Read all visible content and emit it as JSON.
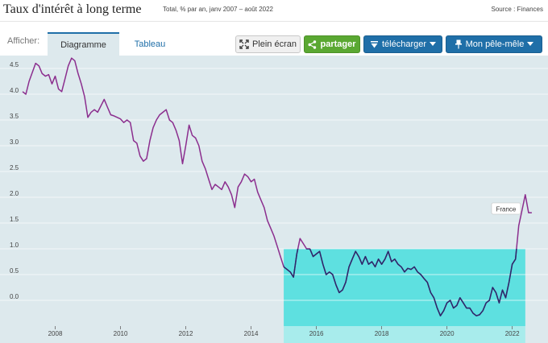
{
  "header": {
    "title": "Taux d'intérêt à long terme",
    "subtitle": "Total, % par an, janv 2007 – août 2022",
    "source": "Source : Finances"
  },
  "toolbar": {
    "show_label": "Afficher:",
    "tabs": [
      {
        "label": "Diagramme",
        "active": true
      },
      {
        "label": "Tableau",
        "active": false
      }
    ],
    "fullscreen_label": "Plein écran",
    "share_label": "partager",
    "download_label": "télécharger",
    "myboard_label": "Mon pêle-mêle"
  },
  "colors": {
    "plot_bg": "#dde9ed",
    "highlight": "#5ee0e0",
    "highlight_band": "#a8ecec",
    "line": "#8b2e8e",
    "line_highlight": "#2a2a6a",
    "share_green": "#5aa832",
    "accent_blue": "#1f6fa8"
  },
  "icons": {
    "fullscreen": "expand-icon",
    "share": "share-icon",
    "download": "download-icon",
    "pin": "pin-icon",
    "caret": "caret-down-icon"
  },
  "chart_data": {
    "type": "line",
    "title": "",
    "xlabel": "",
    "ylabel": "",
    "xlim": [
      2007.0,
      2022.7
    ],
    "ylim": [
      -0.5,
      4.75
    ],
    "y_ticks": [
      "4.5",
      "4.0",
      "3.5",
      "3.0",
      "2.5",
      "2.0",
      "1.5",
      "1.0",
      "0.5",
      "0.0"
    ],
    "y_tick_values": [
      4.5,
      4.0,
      3.5,
      3.0,
      2.5,
      2.0,
      1.5,
      1.0,
      0.5,
      0.0
    ],
    "x_ticks": [
      "2008",
      "2010",
      "2012",
      "2014",
      "2016",
      "2018",
      "2020",
      "2022"
    ],
    "x_tick_values": [
      2008,
      2010,
      2012,
      2014,
      2016,
      2018,
      2020,
      2022
    ],
    "highlight": {
      "x_from": 2015.0,
      "x_to": 2022.4,
      "y_from": -0.5,
      "y_to": 1.0
    },
    "series": [
      {
        "name": "France",
        "x": [
          2007.0,
          2007.1,
          2007.2,
          2007.4,
          2007.5,
          2007.6,
          2007.7,
          2007.8,
          2007.9,
          2008.0,
          2008.1,
          2008.2,
          2008.3,
          2008.4,
          2008.5,
          2008.6,
          2008.7,
          2008.8,
          2008.9,
          2009.0,
          2009.1,
          2009.2,
          2009.3,
          2009.5,
          2009.6,
          2009.7,
          2009.8,
          2009.9,
          2010.0,
          2010.1,
          2010.2,
          2010.3,
          2010.4,
          2010.5,
          2010.6,
          2010.7,
          2010.8,
          2010.9,
          2011.0,
          2011.1,
          2011.2,
          2011.3,
          2011.4,
          2011.5,
          2011.6,
          2011.7,
          2011.8,
          2011.9,
          2012.0,
          2012.1,
          2012.2,
          2012.3,
          2012.4,
          2012.5,
          2012.6,
          2012.7,
          2012.8,
          2012.9,
          2013.0,
          2013.1,
          2013.2,
          2013.3,
          2013.4,
          2013.5,
          2013.6,
          2013.7,
          2013.8,
          2013.9,
          2014.0,
          2014.1,
          2014.2,
          2014.3,
          2014.4,
          2014.5,
          2014.6,
          2014.7,
          2014.8,
          2014.9,
          2015.0,
          2015.1,
          2015.2,
          2015.3,
          2015.4,
          2015.5,
          2015.6,
          2015.7,
          2015.8,
          2015.9,
          2016.0,
          2016.1,
          2016.2,
          2016.3,
          2016.4,
          2016.5,
          2016.6,
          2016.7,
          2016.8,
          2016.9,
          2017.0,
          2017.1,
          2017.2,
          2017.3,
          2017.4,
          2017.5,
          2017.6,
          2017.7,
          2017.8,
          2017.9,
          2018.0,
          2018.1,
          2018.2,
          2018.3,
          2018.4,
          2018.5,
          2018.6,
          2018.7,
          2018.8,
          2018.9,
          2019.0,
          2019.1,
          2019.2,
          2019.3,
          2019.4,
          2019.5,
          2019.6,
          2019.7,
          2019.8,
          2019.9,
          2020.0,
          2020.1,
          2020.2,
          2020.3,
          2020.4,
          2020.5,
          2020.6,
          2020.7,
          2020.8,
          2020.9,
          2021.0,
          2021.1,
          2021.2,
          2021.3,
          2021.4,
          2021.5,
          2021.6,
          2021.7,
          2021.8,
          2021.9,
          2022.0,
          2022.1,
          2022.2,
          2022.3,
          2022.4,
          2022.5,
          2022.6
        ],
        "values": [
          4.05,
          4.0,
          4.25,
          4.6,
          4.55,
          4.4,
          4.35,
          4.38,
          4.2,
          4.35,
          4.1,
          4.05,
          4.3,
          4.55,
          4.7,
          4.65,
          4.4,
          4.2,
          3.95,
          3.55,
          3.65,
          3.7,
          3.65,
          3.9,
          3.75,
          3.6,
          3.58,
          3.55,
          3.52,
          3.45,
          3.5,
          3.45,
          3.1,
          3.05,
          2.8,
          2.7,
          2.75,
          3.1,
          3.35,
          3.5,
          3.6,
          3.65,
          3.7,
          3.5,
          3.45,
          3.3,
          3.1,
          2.65,
          3.0,
          3.4,
          3.2,
          3.15,
          3.0,
          2.7,
          2.55,
          2.35,
          2.15,
          2.25,
          2.2,
          2.15,
          2.3,
          2.2,
          2.05,
          1.8,
          2.2,
          2.3,
          2.45,
          2.4,
          2.3,
          2.35,
          2.1,
          1.95,
          1.8,
          1.55,
          1.4,
          1.25,
          1.05,
          0.85,
          0.65,
          0.6,
          0.55,
          0.45,
          0.9,
          1.2,
          1.1,
          1.0,
          1.0,
          0.85,
          0.9,
          0.95,
          0.7,
          0.5,
          0.55,
          0.5,
          0.3,
          0.15,
          0.2,
          0.35,
          0.65,
          0.8,
          0.95,
          0.85,
          0.7,
          0.85,
          0.7,
          0.75,
          0.65,
          0.8,
          0.7,
          0.8,
          0.95,
          0.75,
          0.8,
          0.7,
          0.65,
          0.55,
          0.62,
          0.6,
          0.65,
          0.55,
          0.5,
          0.42,
          0.35,
          0.15,
          0.05,
          -0.15,
          -0.3,
          -0.2,
          -0.05,
          0.0,
          -0.15,
          -0.1,
          0.05,
          -0.05,
          -0.15,
          -0.15,
          -0.25,
          -0.3,
          -0.28,
          -0.2,
          -0.05,
          0.0,
          0.25,
          0.15,
          -0.05,
          0.2,
          0.05,
          0.35,
          0.7,
          0.8,
          1.45,
          1.75,
          2.05,
          1.7,
          1.7
        ]
      }
    ],
    "series_label": "France"
  }
}
